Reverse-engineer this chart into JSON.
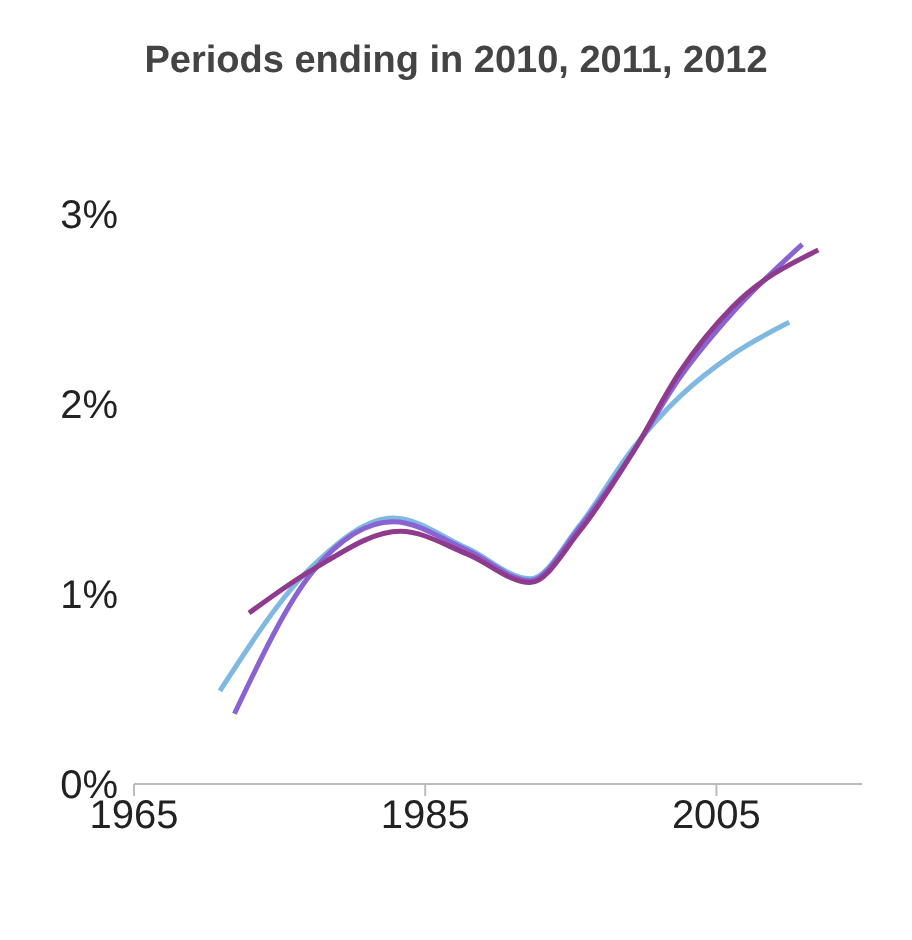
{
  "chart_data": {
    "type": "line",
    "title": "Periods ending in 2010, 2011, 2012",
    "xlim": [
      1965,
      2015
    ],
    "xticks": [
      1965,
      1985,
      2005
    ],
    "ylim": [
      0,
      3
    ],
    "yticks": [
      {
        "value": 0,
        "label": "0%"
      },
      {
        "value": 1,
        "label": "1%"
      },
      {
        "value": 2,
        "label": "2%"
      },
      {
        "value": 3,
        "label": "3%"
      }
    ],
    "grid": false,
    "legend": false,
    "marker": "none",
    "line_style": "solid",
    "series": [
      {
        "color": "#7fb8e0",
        "x": [
          1970.9,
          1977.3,
          1982.8,
          1987.9,
          1992.2,
          1995.6,
          1999.3,
          2002.5,
          2006.1,
          2010
        ],
        "values": [
          0.49,
          1.15,
          1.4,
          1.24,
          1.08,
          1.36,
          1.77,
          2.04,
          2.26,
          2.43
        ]
      },
      {
        "color": "#8a63d2",
        "x": [
          1971.9,
          1977.3,
          1982.8,
          1987.9,
          1992.2,
          1995.6,
          1999.3,
          2002.5,
          2006.1,
          2010.9
        ],
        "values": [
          0.37,
          1.12,
          1.38,
          1.23,
          1.07,
          1.35,
          1.75,
          2.14,
          2.48,
          2.84
        ]
      },
      {
        "color": "#8e3b8e",
        "x": [
          1972.9,
          1977.3,
          1983.3,
          1987.9,
          1992.2,
          1995.6,
          1999.3,
          2002.5,
          2006.1,
          2012
        ],
        "values": [
          0.9,
          1.13,
          1.33,
          1.21,
          1.06,
          1.33,
          1.75,
          2.17,
          2.51,
          2.81
        ]
      }
    ]
  }
}
